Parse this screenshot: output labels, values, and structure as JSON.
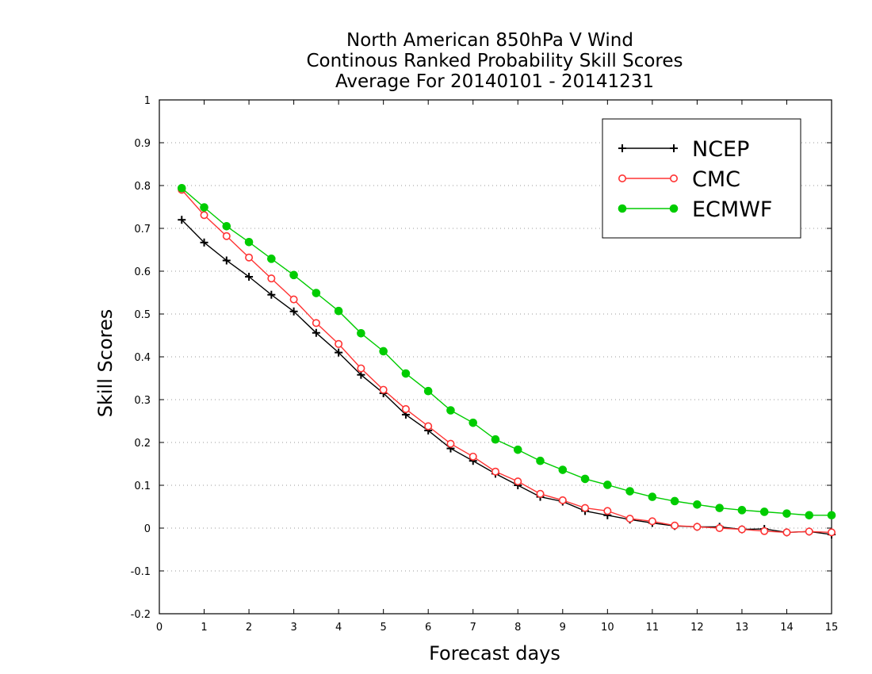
{
  "chart_data": {
    "type": "line",
    "title_lines": [
      "North American 850hPa V Wind",
      "Continous Ranked Probability Skill Scores",
      "Average For 20140101 - 20141231"
    ],
    "xlabel": "Forecast days",
    "ylabel": "Skill Scores",
    "xlim": [
      0,
      15
    ],
    "ylim": [
      -0.2,
      1
    ],
    "x_ticks": [
      0,
      1,
      2,
      3,
      4,
      5,
      6,
      7,
      8,
      9,
      10,
      11,
      12,
      13,
      14,
      15
    ],
    "x_tick_labels": [
      "0",
      "1",
      "2",
      "3",
      "4",
      "5",
      "6",
      "7",
      "8",
      "9",
      "10",
      "11",
      "12",
      "13",
      "14",
      "15"
    ],
    "y_ticks": [
      -0.2,
      -0.1,
      0,
      0.1,
      0.2,
      0.3,
      0.4,
      0.5,
      0.6,
      0.7,
      0.8,
      0.9,
      1
    ],
    "y_tick_labels": [
      "-0.2",
      "-0.1",
      "0",
      "0.1",
      "0.2",
      "0.3",
      "0.4",
      "0.5",
      "0.6",
      "0.7",
      "0.8",
      "0.9",
      "1"
    ],
    "grid": "horizontal dotted",
    "legend_position": "top-right",
    "x": [
      0.5,
      1,
      1.5,
      2,
      2.5,
      3,
      3.5,
      4,
      4.5,
      5,
      5.5,
      6,
      6.5,
      7,
      7.5,
      8,
      8.5,
      9,
      9.5,
      10,
      10.5,
      11,
      11.5,
      12,
      12.5,
      13,
      13.5,
      14,
      14.5,
      15
    ],
    "series": [
      {
        "name": "NCEP",
        "color": "#000000",
        "marker": "plus",
        "values": [
          0.72,
          0.667,
          0.625,
          0.587,
          0.545,
          0.506,
          0.456,
          0.41,
          0.358,
          0.315,
          0.265,
          0.228,
          0.186,
          0.157,
          0.127,
          0.1,
          0.073,
          0.062,
          0.04,
          0.03,
          0.02,
          0.012,
          0.005,
          0.003,
          0.003,
          -0.003,
          -0.002,
          -0.01,
          -0.008,
          -0.015
        ]
      },
      {
        "name": "CMC",
        "color": "#ff3333",
        "marker": "open-circle",
        "values": [
          0.79,
          0.731,
          0.682,
          0.632,
          0.583,
          0.534,
          0.479,
          0.43,
          0.373,
          0.323,
          0.278,
          0.238,
          0.197,
          0.167,
          0.132,
          0.109,
          0.08,
          0.065,
          0.047,
          0.04,
          0.022,
          0.016,
          0.006,
          0.003,
          0.0,
          -0.003,
          -0.007,
          -0.01,
          -0.008,
          -0.01
        ]
      },
      {
        "name": "ECMWF",
        "color": "#00cc00",
        "marker": "filled-circle",
        "values": [
          0.794,
          0.749,
          0.705,
          0.668,
          0.629,
          0.591,
          0.549,
          0.507,
          0.455,
          0.413,
          0.361,
          0.32,
          0.275,
          0.246,
          0.207,
          0.183,
          0.157,
          0.136,
          0.115,
          0.101,
          0.086,
          0.073,
          0.063,
          0.055,
          0.047,
          0.042,
          0.038,
          0.034,
          0.03,
          0.03
        ]
      }
    ]
  }
}
